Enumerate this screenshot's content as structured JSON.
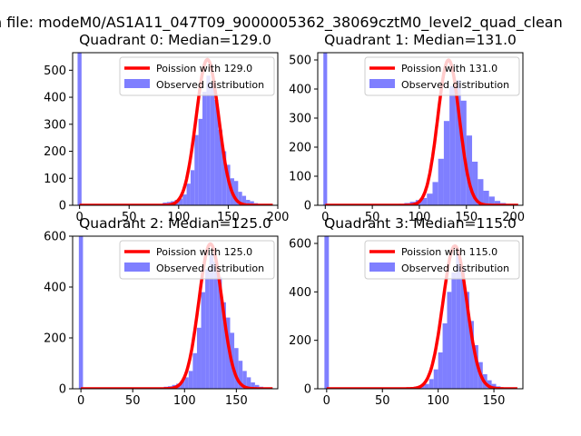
{
  "suptitle": "n file: modeM0/AS1A11_047T09_9000005362_38069cztM0_level2_quad_clean",
  "colors": {
    "curve": "#ff0000",
    "hist": "#7f7fff",
    "axis": "#000000"
  },
  "chart_data": [
    {
      "type": "bar",
      "title": "Quadrant 0: Median=129.0",
      "median": 129.0,
      "legend": [
        "Poission with 129.0",
        "Observed distribution"
      ],
      "legend_position": "upper-right",
      "xlim": [
        -7,
        200
      ],
      "ylim": [
        0,
        565
      ],
      "xticks": [
        0,
        50,
        100,
        150,
        200
      ],
      "xtick_labels": [
        "0",
        "50",
        "100",
        "150",
        "200"
      ],
      "yticks": [
        0,
        100,
        200,
        300,
        400,
        500
      ],
      "ytick_labels": [
        "0",
        "100",
        "200",
        "300",
        "400",
        "500"
      ],
      "spike": {
        "x": 0,
        "value": 565
      },
      "bins": [
        [
          80,
          5
        ],
        [
          84,
          10
        ],
        [
          88,
          12
        ],
        [
          92,
          15
        ],
        [
          96,
          20
        ],
        [
          100,
          25
        ],
        [
          104,
          40
        ],
        [
          108,
          80
        ],
        [
          112,
          130
        ],
        [
          116,
          260
        ],
        [
          120,
          320
        ],
        [
          124,
          420
        ],
        [
          128,
          480
        ],
        [
          132,
          455
        ],
        [
          136,
          390
        ],
        [
          140,
          280
        ],
        [
          144,
          200
        ],
        [
          148,
          150
        ],
        [
          152,
          100
        ],
        [
          156,
          90
        ],
        [
          160,
          50
        ],
        [
          164,
          35
        ],
        [
          168,
          20
        ],
        [
          172,
          15
        ],
        [
          176,
          8
        ],
        [
          180,
          4
        ],
        [
          184,
          3
        ],
        [
          188,
          2
        ]
      ],
      "curve_peak": 540
    },
    {
      "type": "bar",
      "title": "Quadrant 1: Median=131.0",
      "median": 131.0,
      "legend": [
        "Poission with 131.0",
        "Observed distribution"
      ],
      "legend_position": "upper-right",
      "xlim": [
        -8,
        210
      ],
      "ylim": [
        0,
        525
      ],
      "xticks": [
        0,
        50,
        100,
        150,
        200
      ],
      "xtick_labels": [
        "0",
        "50",
        "100",
        "150",
        "200"
      ],
      "yticks": [
        0,
        100,
        200,
        300,
        400,
        500
      ],
      "ytick_labels": [
        "0",
        "100",
        "200",
        "300",
        "400",
        "500"
      ],
      "spike": {
        "x": 0,
        "value": 525
      },
      "bins": [
        [
          72,
          3
        ],
        [
          78,
          5
        ],
        [
          84,
          8
        ],
        [
          90,
          12
        ],
        [
          96,
          18
        ],
        [
          102,
          25
        ],
        [
          108,
          40
        ],
        [
          114,
          80
        ],
        [
          120,
          160
        ],
        [
          126,
          290
        ],
        [
          132,
          410
        ],
        [
          138,
          430
        ],
        [
          144,
          360
        ],
        [
          150,
          240
        ],
        [
          156,
          150
        ],
        [
          162,
          90
        ],
        [
          168,
          50
        ],
        [
          174,
          30
        ],
        [
          180,
          15
        ],
        [
          186,
          8
        ],
        [
          192,
          4
        ],
        [
          198,
          2
        ]
      ],
      "curve_peak": 500
    },
    {
      "type": "bar",
      "title": "Quadrant 2: Median=125.0",
      "median": 125.0,
      "legend": [
        "Poission with 125.0",
        "Observed distribution"
      ],
      "legend_position": "upper-right",
      "xlim": [
        -8,
        190
      ],
      "ylim": [
        0,
        600
      ],
      "xticks": [
        0,
        50,
        100,
        150
      ],
      "xtick_labels": [
        "0",
        "50",
        "100",
        "150"
      ],
      "yticks": [
        0,
        200,
        400,
        600
      ],
      "ytick_labels": [
        "0",
        "200",
        "400",
        "600"
      ],
      "spike": {
        "x": 0,
        "value": 600
      },
      "bins": [
        [
          76,
          5
        ],
        [
          80,
          8
        ],
        [
          84,
          10
        ],
        [
          88,
          15
        ],
        [
          92,
          20
        ],
        [
          96,
          30
        ],
        [
          100,
          45
        ],
        [
          104,
          70
        ],
        [
          108,
          140
        ],
        [
          112,
          240
        ],
        [
          116,
          380
        ],
        [
          120,
          470
        ],
        [
          124,
          530
        ],
        [
          128,
          500
        ],
        [
          132,
          440
        ],
        [
          136,
          340
        ],
        [
          140,
          280
        ],
        [
          144,
          220
        ],
        [
          148,
          160
        ],
        [
          152,
          110
        ],
        [
          156,
          70
        ],
        [
          160,
          45
        ],
        [
          164,
          25
        ],
        [
          168,
          15
        ],
        [
          172,
          8
        ],
        [
          176,
          4
        ],
        [
          180,
          2
        ]
      ],
      "curve_peak": 570
    },
    {
      "type": "bar",
      "title": "Quadrant 3: Median=115.0",
      "median": 115.0,
      "legend": [
        "Poission with 115.0",
        "Observed distribution"
      ],
      "legend_position": "upper-right",
      "xlim": [
        -8,
        176
      ],
      "ylim": [
        0,
        630
      ],
      "xticks": [
        0,
        50,
        100,
        150
      ],
      "xtick_labels": [
        "0",
        "50",
        "100",
        "150"
      ],
      "yticks": [
        0,
        200,
        400,
        600
      ],
      "ytick_labels": [
        "0",
        "200",
        "400",
        "600"
      ],
      "spike": {
        "x": 0,
        "value": 630
      },
      "bins": [
        [
          72,
          4
        ],
        [
          76,
          6
        ],
        [
          80,
          10
        ],
        [
          84,
          14
        ],
        [
          88,
          20
        ],
        [
          92,
          40
        ],
        [
          96,
          80
        ],
        [
          100,
          150
        ],
        [
          104,
          270
        ],
        [
          108,
          400
        ],
        [
          112,
          480
        ],
        [
          116,
          560
        ],
        [
          120,
          500
        ],
        [
          124,
          400
        ],
        [
          128,
          280
        ],
        [
          132,
          180
        ],
        [
          136,
          110
        ],
        [
          140,
          60
        ],
        [
          144,
          35
        ],
        [
          148,
          20
        ],
        [
          152,
          10
        ],
        [
          156,
          5
        ],
        [
          160,
          3
        ],
        [
          164,
          2
        ]
      ],
      "curve_peak": 590
    }
  ]
}
